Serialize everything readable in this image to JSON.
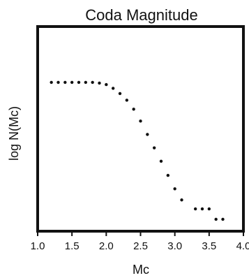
{
  "chart_data": {
    "type": "scatter",
    "title": "Coda Magnitude",
    "xlabel": "Mc",
    "ylabel": "log N(Mc)",
    "xlim": [
      1.0,
      4.0
    ],
    "xticks": [
      1.0,
      1.5,
      2.0,
      2.5,
      3.0,
      3.5,
      4.0
    ],
    "x_tick_labels": [
      "1.0",
      "1.5",
      "2.0",
      "2.5",
      "3.0",
      "3.5",
      "4.0"
    ],
    "y_tick_labels_shown": false,
    "grid": false,
    "series": [
      {
        "x": [
          1.2,
          1.3,
          1.4,
          1.5,
          1.6,
          1.7,
          1.8,
          1.9,
          2.0,
          2.1,
          2.2,
          2.3,
          2.4,
          2.5,
          2.6,
          2.7,
          2.8,
          2.9,
          3.0,
          3.1,
          3.3,
          3.4,
          3.5,
          3.6,
          3.7
        ],
        "y": [
          2.5,
          2.5,
          2.5,
          2.5,
          2.5,
          2.5,
          2.5,
          2.49,
          2.47,
          2.42,
          2.35,
          2.26,
          2.14,
          1.98,
          1.8,
          1.62,
          1.44,
          1.25,
          1.07,
          0.92,
          0.8,
          0.8,
          0.8,
          0.66,
          0.66
        ],
        "color": "#111111"
      }
    ],
    "ylim": [
      0.5,
      3.25
    ]
  }
}
